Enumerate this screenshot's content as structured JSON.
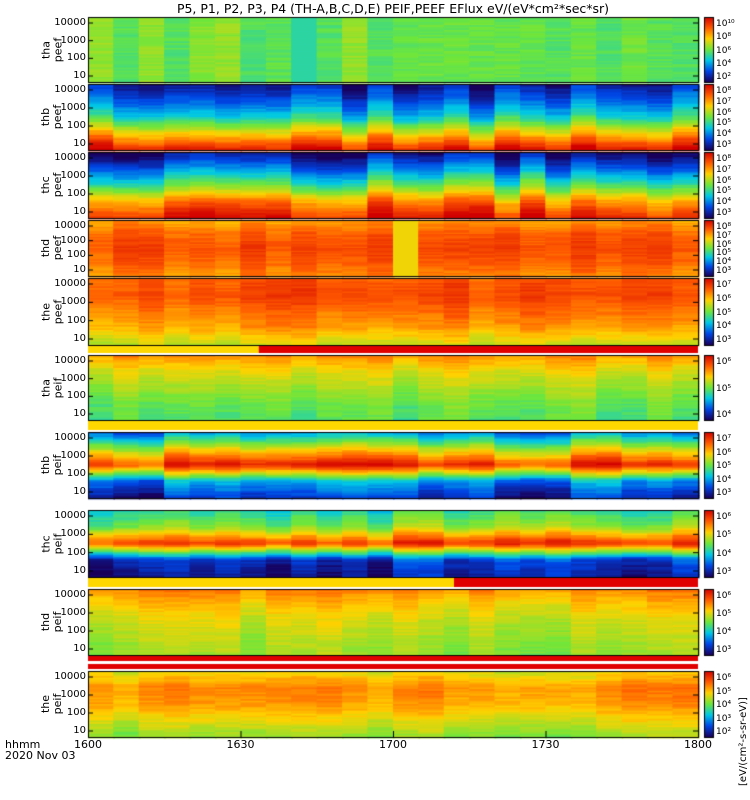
{
  "title": "P5, P1, P2, P3, P4 (TH-A,B,C,D,E) PEIF,PEEF EFlux eV/(eV*cm²*sec*sr)",
  "time_label": {
    "format": "hhmm",
    "date": "2020 Nov 03"
  },
  "x_ticks": [
    "1600",
    "1630",
    "1700",
    "1730",
    "1800"
  ],
  "colorbar_units": "[eV/(cm²-s-sr-eV)]",
  "chart_data": {
    "type": "heatmap",
    "x": {
      "label": "hhmm",
      "start": "1600",
      "end": "1800",
      "ticks": [
        "1600",
        "1630",
        "1700",
        "1730",
        "1800"
      ]
    },
    "y_scale": "log",
    "y_ticks": [
      "10",
      "100",
      "1000",
      "10000"
    ],
    "panels": [
      {
        "probe": "tha",
        "species": "peef",
        "label": "tha\npeef",
        "y_ticks": [
          "10000",
          "1000",
          "100",
          "10"
        ],
        "cbar_ticks": [
          "10¹⁰",
          "10⁸",
          "10⁶",
          "10⁴",
          "10²"
        ],
        "profile": [
          3.0,
          3.0,
          3.0,
          3.0,
          3.0
        ],
        "feature": "cyan gap near 1630"
      },
      {
        "probe": "thb",
        "species": "peef",
        "label": "thb\npeef",
        "y_ticks": [
          "10000",
          "1000",
          "100",
          "10"
        ],
        "cbar_ticks": [
          "10⁸",
          "10⁷",
          "10⁶",
          "10⁵",
          "10⁴",
          "10³"
        ],
        "profile": [
          5.6,
          4.8,
          3.8,
          2.0,
          0.3
        ],
        "feature": "banded"
      },
      {
        "probe": "thc",
        "species": "peef",
        "label": "thc\npeef",
        "y_ticks": [
          "10000",
          "1000",
          "100",
          "10"
        ],
        "cbar_ticks": [
          "10⁸",
          "10⁷",
          "10⁶",
          "10⁵",
          "10⁴",
          "10³"
        ],
        "profile": [
          5.8,
          4.6,
          3.2,
          1.4,
          0.3
        ],
        "feature": "banded"
      },
      {
        "probe": "thd",
        "species": "peef",
        "label": "thd\npeef",
        "y_ticks": [
          "10000",
          "1000",
          "100",
          "10"
        ],
        "cbar_ticks": [
          "10⁸",
          "10⁷",
          "10⁶",
          "10⁵",
          "10⁴",
          "10³"
        ],
        "profile": [
          1.6,
          1.0,
          0.8,
          1.0,
          1.4
        ],
        "feature": "yellow stripe near 1708"
      },
      {
        "probe": "the",
        "species": "peef",
        "label": "the\npeef",
        "y_ticks": [
          "10000",
          "1000",
          "100",
          "10"
        ],
        "cbar_ticks": [
          "10⁷",
          "10⁶",
          "10⁵",
          "10⁴",
          "10³"
        ],
        "profile": [
          1.0,
          0.8,
          1.2,
          1.6,
          2.4
        ],
        "feature": "data gap bar"
      },
      {
        "probe": "tha",
        "species": "peif",
        "label": "tha\npeif",
        "y_ticks": [
          "10000",
          "1000",
          "100",
          "10"
        ],
        "cbar_ticks": [
          "10⁶",
          "10⁵",
          "10⁴"
        ],
        "profile": [
          1.4,
          2.2,
          2.6,
          3.0,
          3.2
        ],
        "feature": "data gap bar"
      },
      {
        "probe": "thb",
        "species": "peif",
        "label": "thb\npeif",
        "y_ticks": [
          "10000",
          "1000",
          "100",
          "10"
        ],
        "cbar_ticks": [
          "10⁷",
          "10⁶",
          "10⁵",
          "10⁴",
          "10³"
        ],
        "profile": [
          4.6,
          2.4,
          0.5,
          4.4,
          5.4
        ],
        "feature": "banded"
      },
      {
        "probe": "thc",
        "species": "peif",
        "label": "thc\npeif",
        "y_ticks": [
          "10000",
          "1000",
          "100",
          "10"
        ],
        "cbar_ticks": [
          "10⁶",
          "10⁵",
          "10⁴",
          "10³"
        ],
        "profile": [
          3.6,
          2.8,
          0.6,
          5.2,
          5.6
        ],
        "feature": "banded"
      },
      {
        "probe": "thd",
        "species": "peif",
        "label": "thd\npeif",
        "y_ticks": [
          "10000",
          "1000",
          "100",
          "10"
        ],
        "cbar_ticks": [
          "10⁶",
          "10⁵",
          "10⁴",
          "10³"
        ],
        "profile": [
          1.4,
          2.0,
          2.4,
          2.6,
          2.8
        ],
        "feature": "data gap bar"
      },
      {
        "probe": "the",
        "species": "peif",
        "label": "the\npeif",
        "y_ticks": [
          "10000",
          "1000",
          "100",
          "10"
        ],
        "cbar_ticks": [
          "10⁶",
          "10⁵",
          "10⁴",
          "10³",
          "10²"
        ],
        "profile": [
          2.2,
          1.4,
          1.6,
          2.2,
          2.8
        ],
        "feature": "data gap bar"
      }
    ]
  }
}
